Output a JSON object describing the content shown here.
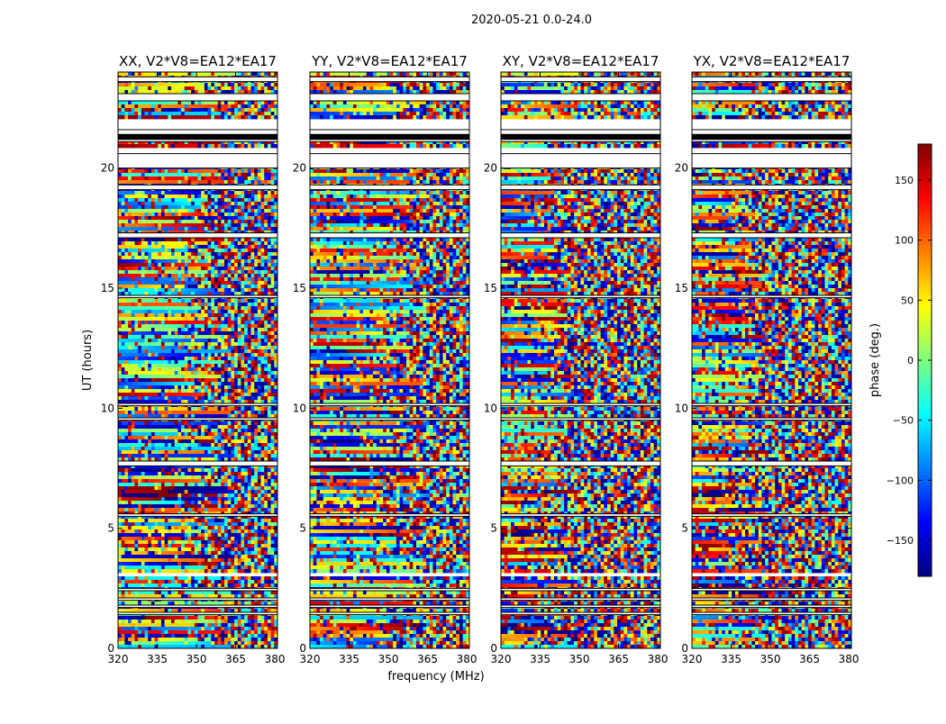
{
  "figure_title": "2020-05-21 0.0-24.0",
  "chart_data": {
    "type": "heatmap",
    "suptitle": "2020-05-21 0.0-24.0",
    "xlabel": "frequency (MHz)",
    "ylabel": "UT (hours)",
    "xlim": [
      320,
      381
    ],
    "ylim": [
      0,
      24
    ],
    "xticks": [
      320,
      335,
      350,
      365,
      380
    ],
    "yticks": [
      0,
      5,
      10,
      15,
      20
    ],
    "grid": false,
    "panels": [
      {
        "title": "XX, V2*V8=EA12*EA17",
        "correlation": "XX"
      },
      {
        "title": "YY, V2*V8=EA12*EA17",
        "correlation": "YY"
      },
      {
        "title": "XY, V2*V8=EA12*EA17",
        "correlation": "XY"
      },
      {
        "title": "YX, V2*V8=EA12*EA17",
        "correlation": "YX"
      }
    ],
    "colorbar": {
      "label": "phase (deg.)",
      "colormap": "jet",
      "range": [
        -180,
        180
      ],
      "ticks": [
        150,
        100,
        50,
        0,
        -50,
        -100,
        -150
      ],
      "tick_labels": [
        "150",
        "100",
        "50",
        "0",
        "−50",
        "−100",
        "−150"
      ]
    },
    "flagged_time_ranges_hours": [
      [
        23.6,
        23.8
      ],
      [
        22.8,
        23.1
      ],
      [
        21.4,
        21.6
      ],
      [
        21.1,
        21.4
      ],
      [
        20.0,
        20.6
      ],
      [
        19.1,
        19.3
      ],
      [
        17.1,
        17.3
      ],
      [
        14.6,
        14.7
      ],
      [
        10.1,
        10.2
      ],
      [
        9.5,
        9.6
      ],
      [
        7.6,
        7.8
      ],
      [
        5.5,
        5.6
      ],
      [
        2.4,
        2.5
      ],
      [
        2.0,
        2.1
      ],
      [
        1.7,
        1.8
      ],
      [
        1.4,
        1.5
      ]
    ],
    "gap_time_ranges_hours": [
      [
        21.6,
        22.1
      ],
      [
        20.6,
        20.9
      ],
      [
        3.0,
        3.1
      ]
    ]
  }
}
